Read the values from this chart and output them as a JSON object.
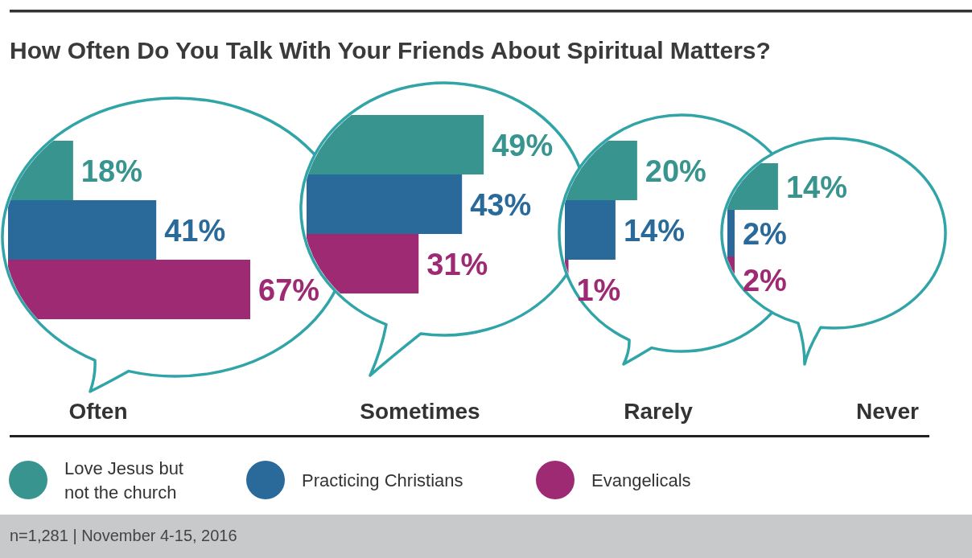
{
  "chart_data": [
    {
      "type": "bar",
      "orientation": "horizontal",
      "title": "How Often Do You Talk With Your Friends About Spiritual Matters?",
      "xlabel": "Often",
      "categories": [
        null
      ],
      "series": [
        {
          "name": "Love Jesus but not the church",
          "color": "#38948f",
          "values": [
            18
          ],
          "value_labels": [
            "18%"
          ]
        },
        {
          "name": "Practicing Christians",
          "color": "#2a6a9b",
          "values": [
            41
          ],
          "value_labels": [
            "41%"
          ]
        },
        {
          "name": "Evangelicals",
          "color": "#9d2a72",
          "values": [
            67
          ],
          "value_labels": [
            "67%"
          ]
        }
      ],
      "legend": "bottom",
      "annotations": [
        "n=1,281 | November 4-15, 2016"
      ]
    },
    {
      "type": "bar",
      "orientation": "horizontal",
      "xlabel": "Sometimes",
      "categories": [
        null
      ],
      "series": [
        {
          "color": "#38948f",
          "values": [
            49
          ],
          "value_labels": [
            "49%"
          ]
        },
        {
          "color": "#2a6a9b",
          "values": [
            43
          ],
          "value_labels": [
            "43%"
          ]
        },
        {
          "color": "#9d2a72",
          "values": [
            31
          ],
          "value_labels": [
            "31%"
          ]
        }
      ]
    },
    {
      "type": "bar",
      "orientation": "horizontal",
      "xlabel": "Rarely",
      "categories": [
        null
      ],
      "series": [
        {
          "color": "#38948f",
          "values": [
            20
          ],
          "value_labels": [
            "20%"
          ]
        },
        {
          "color": "#2a6a9b",
          "values": [
            14
          ],
          "value_labels": [
            "14%"
          ]
        },
        {
          "color": "#9d2a72",
          "values": [
            1
          ],
          "value_labels": [
            "1%"
          ]
        }
      ]
    },
    {
      "type": "bar",
      "orientation": "horizontal",
      "xlabel": "Never",
      "categories": [
        null
      ],
      "series": [
        {
          "color": "#38948f",
          "values": [
            14
          ],
          "value_labels": [
            "14%"
          ]
        },
        {
          "color": "#2a6a9b",
          "values": [
            2
          ],
          "value_labels": [
            "2%"
          ]
        },
        {
          "color": "#9d2a72",
          "values": [
            2
          ],
          "value_labels": [
            "2%"
          ]
        }
      ]
    }
  ]
}
